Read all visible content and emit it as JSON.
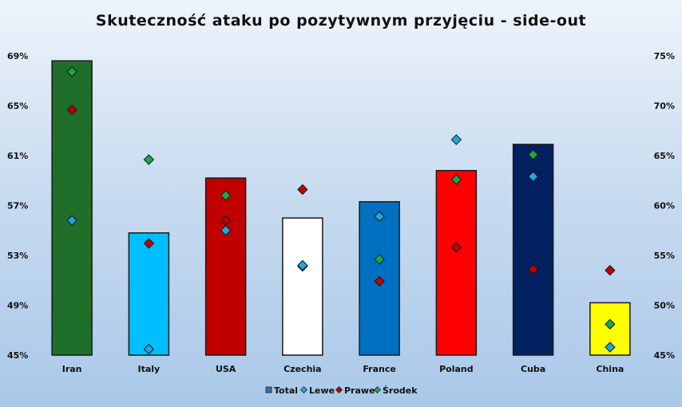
{
  "chart_data": {
    "type": "bar",
    "title": "Skuteczność ataku po pozytywnym przyjęciu - side-out",
    "categories": [
      "Iran",
      "Italy",
      "USA",
      "Czechia",
      "France",
      "Poland",
      "Cuba",
      "China"
    ],
    "bar_colors": [
      "#1f6e2a",
      "#00bfff",
      "#c00000",
      "#ffffff",
      "#0070c0",
      "#ff0000",
      "#002060",
      "#ffff00"
    ],
    "series": [
      {
        "name": "Total",
        "axis": "left",
        "kind": "bar",
        "values": [
          68.6,
          54.8,
          59.2,
          56.0,
          57.3,
          59.8,
          61.9,
          49.2
        ]
      },
      {
        "name": "Lewe",
        "axis": "right",
        "kind": "marker",
        "color": "#1ea7e4",
        "values": [
          58.5,
          45.6,
          57.5,
          null,
          58.9,
          66.6,
          62.9,
          45.8
        ]
      },
      {
        "name": "Prawe",
        "axis": "right",
        "kind": "marker",
        "color": "#c00000",
        "values": [
          69.6,
          56.2,
          58.5,
          61.6,
          52.4,
          55.8,
          53.6,
          53.5
        ]
      },
      {
        "name": "Środek",
        "axis": "right",
        "kind": "marker",
        "color": "#17a84a",
        "values": [
          73.4,
          64.6,
          61.0,
          53.9,
          54.6,
          62.6,
          65.1,
          48.1
        ]
      }
    ],
    "extra_points": [
      {
        "series": "Lewe",
        "category": "Czechia",
        "value": 54.0
      }
    ],
    "y_left": {
      "min": 45,
      "max": 69,
      "ticks": [
        45,
        49,
        53,
        57,
        61,
        65,
        69
      ],
      "format": "%"
    },
    "y_right": {
      "min": 45,
      "max": 75,
      "ticks": [
        45,
        50,
        55,
        60,
        65,
        70,
        75
      ],
      "format": "%"
    },
    "legend": {
      "position": "bottom",
      "entries": [
        "Total",
        "Lewe",
        "Prawe",
        "Środek"
      ]
    },
    "grid": false
  }
}
